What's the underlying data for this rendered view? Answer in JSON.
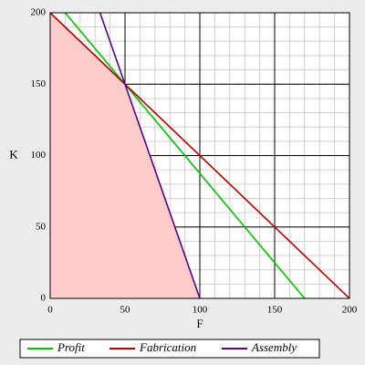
{
  "chart_data": {
    "type": "line",
    "xlabel": "F",
    "ylabel": "K",
    "xlim": [
      0,
      200
    ],
    "ylim": [
      0,
      200
    ],
    "xticks": [
      0,
      50,
      100,
      150,
      200
    ],
    "yticks": [
      0,
      50,
      100,
      150,
      200
    ],
    "minor_grid_step": 10,
    "region": {
      "x": [
        0,
        0,
        50,
        100
      ],
      "y": [
        0,
        200,
        150,
        0
      ],
      "color": "#ffcccc"
    },
    "series": [
      {
        "name": "Profit",
        "color": "#00c000",
        "x": [
          10,
          170
        ],
        "y": [
          200,
          0
        ]
      },
      {
        "name": "Fabrication",
        "color": "#b00000",
        "x": [
          0,
          200
        ],
        "y": [
          200,
          0
        ]
      },
      {
        "name": "Assembly",
        "color": "#550088",
        "x": [
          33.3,
          100
        ],
        "y": [
          200,
          0
        ]
      }
    ],
    "legend": "bottom"
  }
}
